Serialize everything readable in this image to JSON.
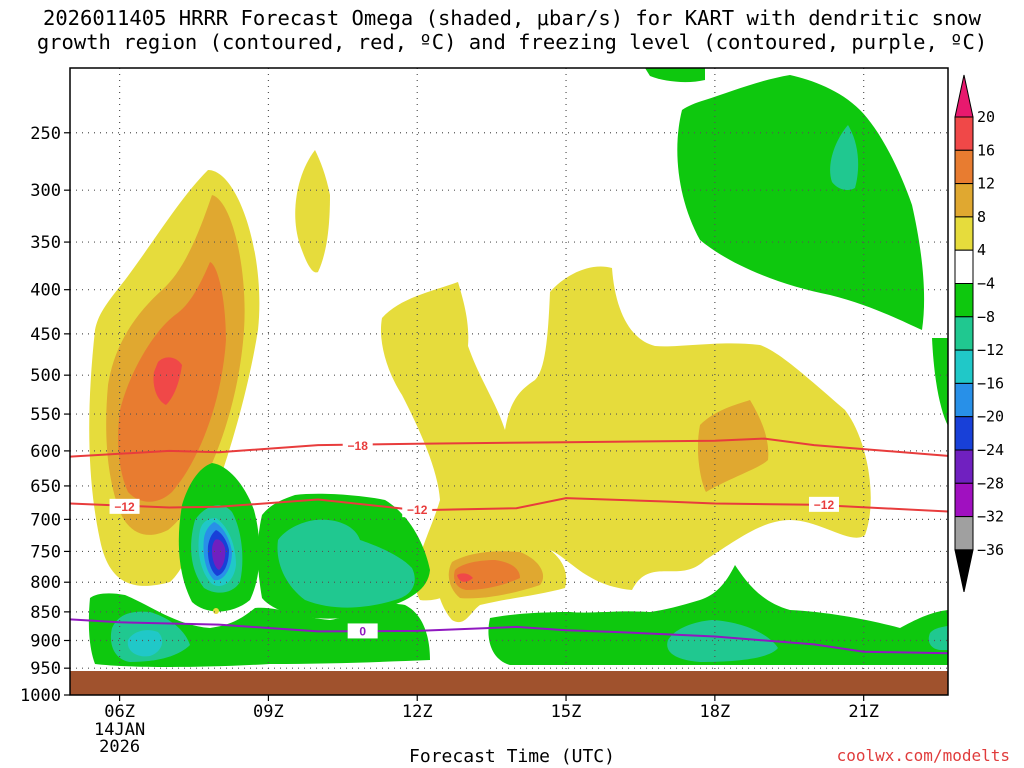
{
  "title": {
    "line1": "2026011405 HRRR Forecast Omega (shaded, μbar/s) for KART with dendritic snow",
    "line2": "growth region (contoured, red, ºC) and freezing level (contoured, purple, ºC)"
  },
  "credit": "coolwx.com/modelts",
  "chart_data": {
    "type": "heatmap",
    "title": "2026011405 HRRR Forecast Omega (shaded, μbar/s) for KART with dendritic snow growth region (contoured, red, ºC) and freezing level (contoured, purple, ºC)",
    "xlabel": "Forecast Time (UTC)",
    "ylabel": "",
    "x_ticks": [
      "06Z",
      "09Z",
      "12Z",
      "15Z",
      "18Z",
      "21Z"
    ],
    "x_first_tick_extra": [
      "14JAN",
      "2026"
    ],
    "x_range_hours_utc": [
      5,
      22.7
    ],
    "y_ticks": [
      250,
      300,
      350,
      400,
      450,
      500,
      550,
      600,
      650,
      700,
      750,
      800,
      850,
      900,
      950,
      1000
    ],
    "y_unit": "hPa",
    "y_range": [
      200,
      1000
    ],
    "grid": true,
    "colorbar": {
      "ticks": [
        "20",
        "16",
        "12",
        "8",
        "4",
        "−4",
        "−8",
        "−12",
        "−16",
        "−20",
        "−24",
        "−28",
        "−32",
        "−36"
      ],
      "colors": [
        "#e8196e",
        "#f04848",
        "#e87c30",
        "#e0a830",
        "#e6dc3c",
        "#ffffff",
        "#0ec80e",
        "#20c890",
        "#20c8c8",
        "#2890e8",
        "#1840d8",
        "#7020c0",
        "#a010c0",
        "#a0a0a0",
        "#000000"
      ],
      "extend": "both"
    },
    "contours": [
      {
        "name": "dendritic snow growth region",
        "color": "#e83c3c",
        "unit": "ºC",
        "lines": [
          {
            "label": "−18",
            "points": [
              [
                5,
                608
              ],
              [
                7,
                600
              ],
              [
                8,
                602
              ],
              [
                10,
                592
              ],
              [
                12,
                590
              ],
              [
                15,
                588
              ],
              [
                18,
                586
              ],
              [
                19,
                583
              ],
              [
                20,
                592
              ],
              [
                22.7,
                607
              ]
            ]
          },
          {
            "label": "−12",
            "points": [
              [
                5,
                676
              ],
              [
                7,
                682
              ],
              [
                8,
                681
              ],
              [
                10,
                670
              ],
              [
                12,
                686
              ],
              [
                14,
                683
              ],
              [
                15,
                668
              ],
              [
                17,
                673
              ],
              [
                18,
                676
              ],
              [
                20,
                678
              ],
              [
                22.7,
                688
              ]
            ]
          }
        ]
      },
      {
        "name": "freezing level",
        "color": "#9018c0",
        "unit": "ºC",
        "lines": [
          {
            "label": "0",
            "points": [
              [
                5,
                863
              ],
              [
                6,
                868
              ],
              [
                8,
                872
              ],
              [
                10,
                884
              ],
              [
                12,
                883
              ],
              [
                14,
                876
              ],
              [
                15,
                882
              ],
              [
                16,
                885
              ],
              [
                18,
                893
              ],
              [
                20,
                907
              ],
              [
                21,
                920
              ],
              [
                22.7,
                923
              ]
            ]
          }
        ]
      }
    ],
    "annotations": [
      {
        "text": "−18",
        "x": 10.8,
        "y": 593
      },
      {
        "text": "−12",
        "x": 6.1,
        "y": 681
      },
      {
        "text": "−12",
        "x": 12,
        "y": 686
      },
      {
        "text": "−12",
        "x": 20.2,
        "y": 678
      },
      {
        "text": "0",
        "x": 10.9,
        "y": 884
      }
    ]
  }
}
